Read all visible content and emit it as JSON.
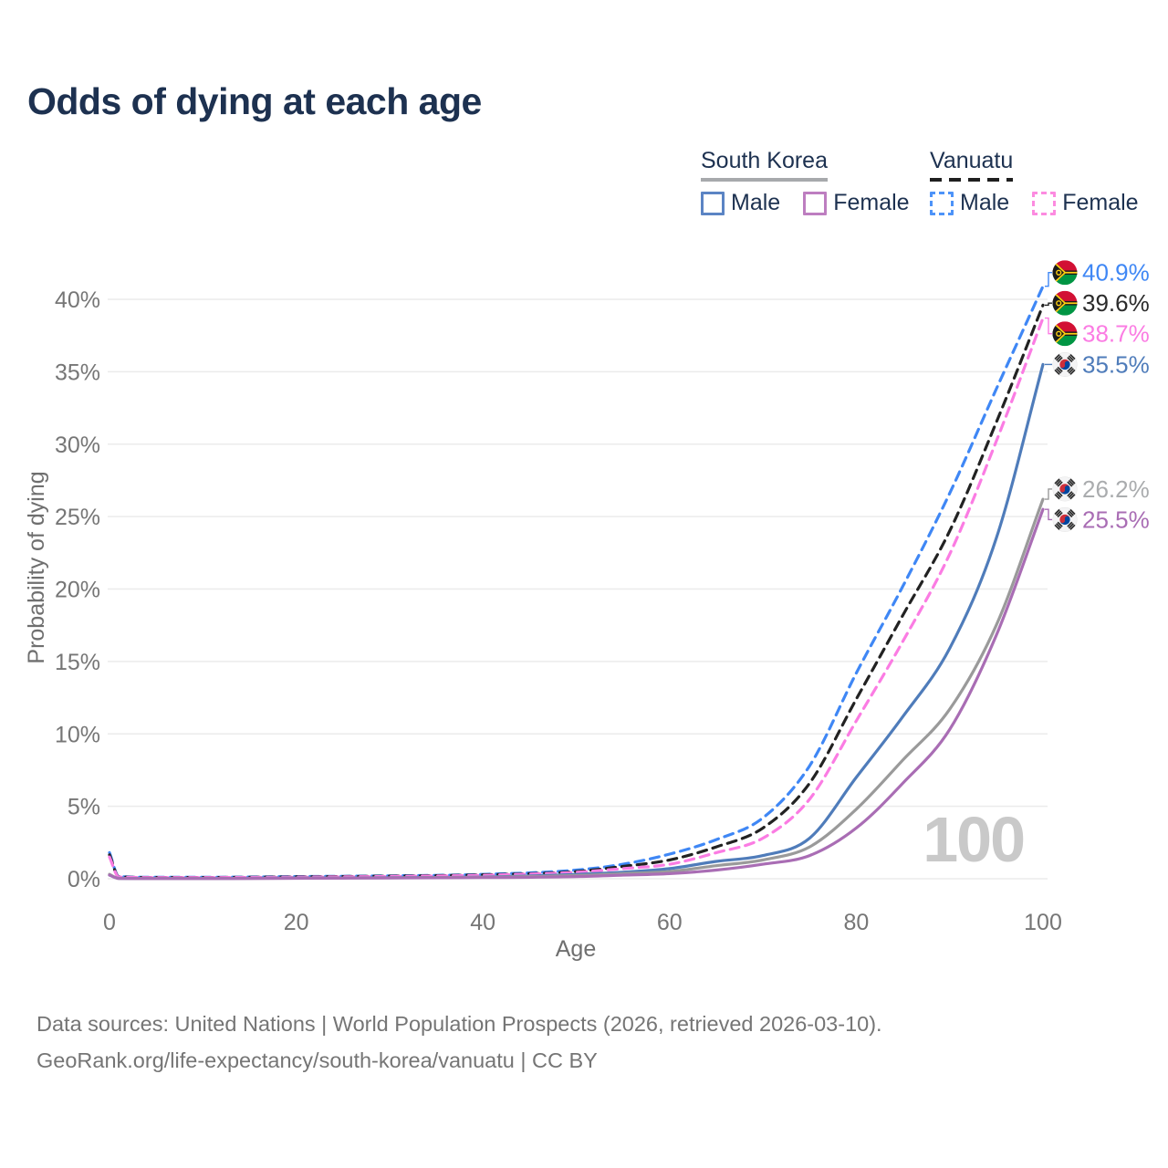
{
  "title": "Odds of dying at each age",
  "watermark": "100",
  "legend": {
    "groups": [
      {
        "name": "South Korea",
        "underline_style": "solid",
        "underline_color": "#a7a9ac",
        "items": [
          {
            "label": "Male",
            "color": "#5b84c4",
            "dashed": false
          },
          {
            "label": "Female",
            "color": "#bd7ec0",
            "dashed": false
          }
        ]
      },
      {
        "name": "Vanuatu",
        "underline_style": "dashed",
        "underline_color": "#1f1f1f",
        "items": [
          {
            "label": "Male",
            "color": "#4d93f8",
            "dashed": true
          },
          {
            "label": "Female",
            "color": "#fc8be0",
            "dashed": true
          }
        ]
      }
    ]
  },
  "footer": {
    "line1": "Data sources: United Nations | World Population Prospects (2026, retrieved 2026-03-10).",
    "line2": "GeoRank.org/life-expectancy/south-korea/vanuatu | CC BY"
  },
  "chart_data": {
    "type": "line",
    "title": "Odds of dying at each age",
    "xlabel": "Age",
    "ylabel": "Probability of dying",
    "xlim": [
      0,
      100
    ],
    "ylim": [
      0,
      42.5
    ],
    "grid": true,
    "legend_position": "top-right",
    "x_ticks": [
      0,
      20,
      40,
      60,
      80,
      100
    ],
    "y_ticks_pct": [
      0,
      5,
      10,
      15,
      20,
      25,
      30,
      35,
      40
    ],
    "ages": [
      0,
      1,
      5,
      10,
      20,
      30,
      40,
      50,
      55,
      60,
      65,
      70,
      75,
      80,
      85,
      90,
      95,
      100
    ],
    "series": [
      {
        "name": "Vanuatu Male",
        "country": "Vanuatu",
        "sex": "Male",
        "style": "dashed",
        "color": "#3f87f5",
        "flag": "vu",
        "end_label": "40.9%",
        "label_color": "#3f87f5",
        "values": [
          1.8,
          0.15,
          0.1,
          0.1,
          0.15,
          0.2,
          0.3,
          0.6,
          1.0,
          1.7,
          2.7,
          4.2,
          7.8,
          14.2,
          20.2,
          26.6,
          33.8,
          40.9
        ]
      },
      {
        "name": "Vanuatu Both sexes",
        "country": "Vanuatu",
        "sex": "Both",
        "style": "dashed",
        "color": "#222222",
        "flag": "vu",
        "end_label": "39.6%",
        "label_color": "#2b2b2b",
        "values": [
          1.65,
          0.14,
          0.09,
          0.09,
          0.13,
          0.18,
          0.27,
          0.5,
          0.85,
          1.3,
          2.2,
          3.5,
          6.6,
          12.4,
          18.2,
          24.0,
          31.5,
          39.6
        ]
      },
      {
        "name": "Vanuatu Female",
        "country": "Vanuatu",
        "sex": "Female",
        "style": "dashed",
        "color": "#fb7ce3",
        "flag": "vu",
        "end_label": "38.7%",
        "label_color": "#fb7ce3",
        "values": [
          1.5,
          0.12,
          0.08,
          0.08,
          0.11,
          0.16,
          0.24,
          0.45,
          0.7,
          1.0,
          1.8,
          2.8,
          5.5,
          10.9,
          16.4,
          22.4,
          30.2,
          38.7
        ]
      },
      {
        "name": "South Korea Male",
        "country": "South Korea",
        "sex": "Male",
        "style": "solid",
        "color": "#4f7cba",
        "flag": "kr",
        "end_label": "35.5%",
        "label_color": "#4f7cba",
        "values": [
          0.25,
          0.03,
          0.02,
          0.02,
          0.05,
          0.07,
          0.12,
          0.3,
          0.45,
          0.7,
          1.2,
          1.6,
          2.8,
          7.0,
          11.2,
          15.9,
          23.5,
          35.5
        ]
      },
      {
        "name": "South Korea Both sexes",
        "country": "South Korea",
        "sex": "Both",
        "style": "solid",
        "color": "#9a9a9a",
        "flag": "kr",
        "end_label": "26.2%",
        "label_color": "#aaacae",
        "values": [
          0.3,
          0.025,
          0.02,
          0.02,
          0.04,
          0.06,
          0.1,
          0.22,
          0.35,
          0.5,
          0.9,
          1.3,
          2.2,
          4.8,
          8.2,
          11.7,
          17.5,
          26.2
        ]
      },
      {
        "name": "South Korea Female",
        "country": "South Korea",
        "sex": "Female",
        "style": "solid",
        "color": "#a96db4",
        "flag": "kr",
        "end_label": "25.5%",
        "label_color": "#a96db4",
        "values": [
          0.25,
          0.02,
          0.015,
          0.015,
          0.03,
          0.05,
          0.08,
          0.15,
          0.25,
          0.35,
          0.6,
          1.0,
          1.6,
          3.5,
          6.6,
          10.3,
          16.8,
          25.5
        ]
      }
    ]
  }
}
